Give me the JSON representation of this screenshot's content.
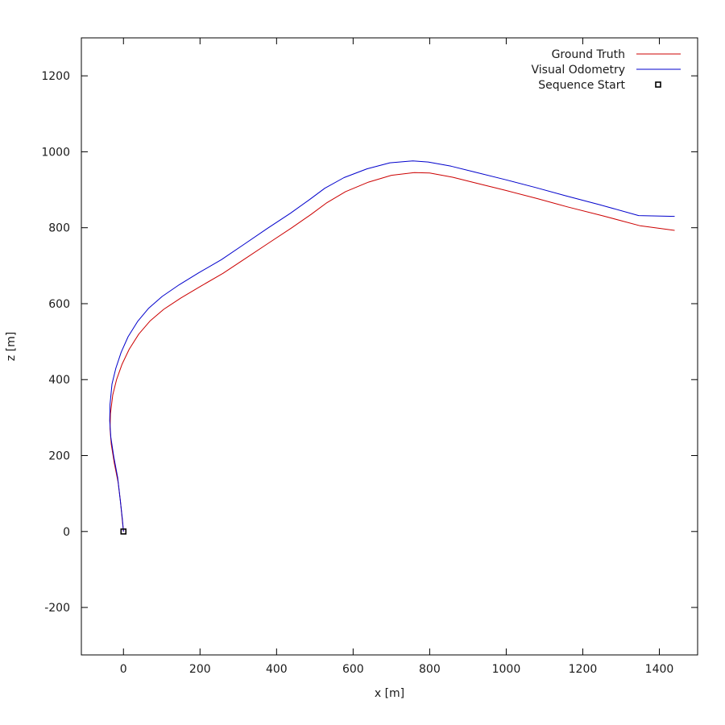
{
  "chart_data": {
    "type": "line",
    "title": "",
    "xlabel": "x [m]",
    "ylabel": "z [m]",
    "xlim": [
      -110,
      1500
    ],
    "ylim": [
      -325,
      1300
    ],
    "xticks": [
      0,
      200,
      400,
      600,
      800,
      1000,
      1200,
      1400
    ],
    "yticks": [
      -200,
      0,
      200,
      400,
      600,
      800,
      1000,
      1200
    ],
    "grid": false,
    "legend": "top-right",
    "series": [
      {
        "name": "Ground Truth",
        "color": "#cc0000",
        "x": [
          0,
          -3,
          -8,
          -14,
          -24,
          -32,
          -35,
          -34,
          -28,
          -18,
          -4,
          15,
          40,
          70,
          105,
          150,
          200,
          260,
          320,
          380,
          440,
          490,
          530,
          580,
          640,
          700,
          760,
          800,
          860,
          920,
          1000,
          1080,
          1160,
          1250,
          1350,
          1440
        ],
        "y": [
          0,
          30,
          80,
          130,
          180,
          230,
          270,
          310,
          360,
          400,
          440,
          480,
          520,
          555,
          585,
          615,
          645,
          680,
          720,
          760,
          800,
          835,
          865,
          895,
          920,
          938,
          945,
          944,
          933,
          918,
          898,
          877,
          855,
          832,
          805,
          793
        ]
      },
      {
        "name": "Visual Odometry",
        "color": "#0000cc",
        "x": [
          0,
          -3,
          -9,
          -15,
          -25,
          -33,
          -36,
          -35,
          -30,
          -20,
          -6,
          12,
          37,
          66,
          101,
          146,
          196,
          256,
          316,
          376,
          436,
          486,
          526,
          576,
          636,
          696,
          756,
          796,
          856,
          916,
          996,
          1076,
          1156,
          1246,
          1346,
          1440
        ],
        "y": [
          0,
          35,
          88,
          142,
          195,
          248,
          292,
          335,
          388,
          430,
          472,
          513,
          553,
          588,
          619,
          650,
          681,
          716,
          757,
          798,
          838,
          874,
          904,
          932,
          955,
          971,
          976,
          973,
          962,
          947,
          927,
          906,
          884,
          860,
          832,
          830
        ]
      },
      {
        "name": "Sequence Start",
        "marker": "square",
        "color": "#000000",
        "x": [
          0
        ],
        "y": [
          0
        ]
      }
    ]
  }
}
